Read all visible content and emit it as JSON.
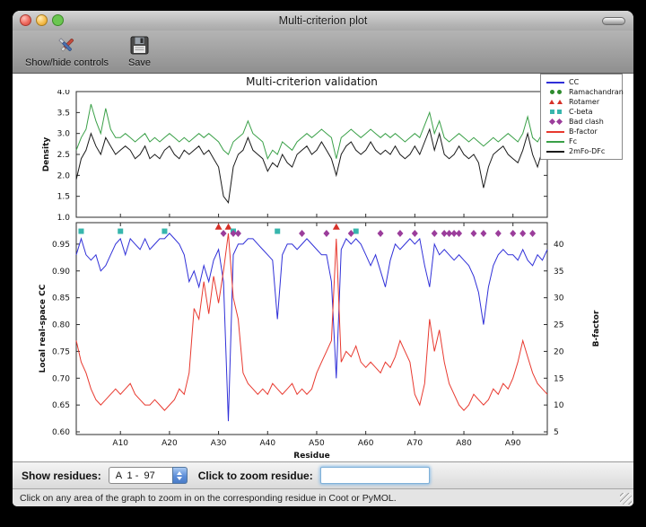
{
  "window": {
    "title": "Multi-criterion plot"
  },
  "toolbar": {
    "buttons": [
      {
        "label": "Show/hide controls",
        "icon": "tools-icon"
      },
      {
        "label": "Save",
        "icon": "save-icon"
      }
    ]
  },
  "controls": {
    "show_residues_label": "Show residues:",
    "residue_range_value": "A  1 -  97",
    "zoom_label": "Click to zoom residue:",
    "zoom_input_value": ""
  },
  "status_bar": {
    "text": "Click on any area of the graph to zoom in on the corresponding residue in Coot or PyMOL."
  },
  "legend": {
    "items": [
      {
        "label": "CC",
        "type": "line",
        "color": "#3030d8"
      },
      {
        "label": "Ramachandran",
        "type": "dot",
        "color": "#2e8b2e"
      },
      {
        "label": "Rotamer",
        "type": "triangle",
        "color": "#d63028"
      },
      {
        "label": "C-beta",
        "type": "square",
        "color": "#37b6ad"
      },
      {
        "label": "Bad clash",
        "type": "diamond",
        "color": "#9b3d9b"
      },
      {
        "label": "B-factor",
        "type": "line",
        "color": "#e8392f"
      },
      {
        "label": "Fc",
        "type": "line",
        "color": "#3aa048"
      },
      {
        "label": "2mFo-DFc",
        "type": "line",
        "color": "#1a1a1a"
      }
    ]
  },
  "chart_data": [
    {
      "type": "line",
      "title": "Multi-criterion validation",
      "ylabel": "Density",
      "ylim": [
        1.0,
        4.0
      ],
      "yticks": [
        1.0,
        1.5,
        2.0,
        2.5,
        3.0,
        3.5,
        4.0
      ],
      "x_start": 1,
      "x_end": 97,
      "series": [
        {
          "name": "Fc",
          "color": "#3aa048",
          "values": [
            2.6,
            2.9,
            3.1,
            3.7,
            3.3,
            3.0,
            3.6,
            3.1,
            2.9,
            2.9,
            3.0,
            2.9,
            2.8,
            2.9,
            3.0,
            2.8,
            2.9,
            2.8,
            2.9,
            3.0,
            2.9,
            2.8,
            2.9,
            2.8,
            2.9,
            3.0,
            2.9,
            3.0,
            2.9,
            2.8,
            2.6,
            2.5,
            2.8,
            2.9,
            3.0,
            3.3,
            3.0,
            2.9,
            2.8,
            2.4,
            2.6,
            2.5,
            2.8,
            2.7,
            2.6,
            2.8,
            2.9,
            3.0,
            2.9,
            3.0,
            3.1,
            3.0,
            2.9,
            2.4,
            2.9,
            3.0,
            3.1,
            3.0,
            2.9,
            3.0,
            3.1,
            3.0,
            2.9,
            3.0,
            2.9,
            3.0,
            2.9,
            2.8,
            2.9,
            3.0,
            2.9,
            3.2,
            3.5,
            3.0,
            3.3,
            2.9,
            2.8,
            2.9,
            3.0,
            2.9,
            2.8,
            2.9,
            2.8,
            2.7,
            2.8,
            2.9,
            2.8,
            2.9,
            3.0,
            2.9,
            2.8,
            3.0,
            3.4,
            2.9,
            2.8,
            3.0,
            3.3
          ]
        },
        {
          "name": "2mFo-DFc",
          "color": "#1a1a1a",
          "values": [
            1.9,
            2.4,
            2.6,
            3.0,
            2.7,
            2.5,
            2.9,
            2.7,
            2.5,
            2.6,
            2.7,
            2.6,
            2.4,
            2.5,
            2.7,
            2.4,
            2.5,
            2.4,
            2.6,
            2.7,
            2.5,
            2.4,
            2.6,
            2.5,
            2.6,
            2.7,
            2.5,
            2.6,
            2.4,
            2.2,
            1.5,
            1.35,
            2.2,
            2.5,
            2.6,
            2.9,
            2.6,
            2.5,
            2.4,
            2.1,
            2.3,
            2.2,
            2.5,
            2.3,
            2.2,
            2.5,
            2.6,
            2.7,
            2.5,
            2.6,
            2.8,
            2.6,
            2.4,
            2.0,
            2.5,
            2.7,
            2.8,
            2.6,
            2.5,
            2.6,
            2.8,
            2.6,
            2.5,
            2.6,
            2.5,
            2.7,
            2.5,
            2.4,
            2.5,
            2.7,
            2.5,
            2.8,
            3.1,
            2.6,
            3.0,
            2.5,
            2.4,
            2.5,
            2.7,
            2.5,
            2.4,
            2.5,
            2.3,
            1.7,
            2.2,
            2.5,
            2.6,
            2.7,
            2.5,
            2.4,
            2.3,
            2.6,
            3.0,
            2.5,
            2.2,
            2.6,
            3.1
          ]
        }
      ]
    },
    {
      "type": "line",
      "xlabel": "Residue",
      "ylabel_left": "Local real-space CC",
      "ylabel_right": "B-factor",
      "ylim_left": [
        0.595,
        0.99
      ],
      "ylim_right": [
        4.5,
        44
      ],
      "yticks_left": [
        0.6,
        0.65,
        0.7,
        0.75,
        0.8,
        0.85,
        0.9,
        0.95
      ],
      "yticks_right": [
        5,
        10,
        15,
        20,
        25,
        30,
        35,
        40
      ],
      "xticks": [
        {
          "value": 10,
          "label": "A10"
        },
        {
          "value": 20,
          "label": "A20"
        },
        {
          "value": 30,
          "label": "A30"
        },
        {
          "value": 40,
          "label": "A40"
        },
        {
          "value": 50,
          "label": "A50"
        },
        {
          "value": 60,
          "label": "A60"
        },
        {
          "value": 70,
          "label": "A70"
        },
        {
          "value": 80,
          "label": "A80"
        },
        {
          "value": 90,
          "label": "A90"
        }
      ],
      "x_start": 1,
      "x_end": 97,
      "series": [
        {
          "name": "CC",
          "axis": "left",
          "color": "#3030d8",
          "values": [
            0.93,
            0.96,
            0.93,
            0.92,
            0.93,
            0.9,
            0.91,
            0.93,
            0.95,
            0.96,
            0.93,
            0.96,
            0.95,
            0.94,
            0.96,
            0.94,
            0.95,
            0.96,
            0.96,
            0.97,
            0.96,
            0.95,
            0.93,
            0.88,
            0.9,
            0.87,
            0.91,
            0.88,
            0.92,
            0.94,
            0.88,
            0.62,
            0.93,
            0.95,
            0.95,
            0.96,
            0.96,
            0.95,
            0.94,
            0.93,
            0.92,
            0.81,
            0.93,
            0.95,
            0.95,
            0.94,
            0.95,
            0.96,
            0.95,
            0.94,
            0.93,
            0.93,
            0.88,
            0.7,
            0.94,
            0.96,
            0.95,
            0.96,
            0.95,
            0.93,
            0.91,
            0.93,
            0.9,
            0.87,
            0.92,
            0.95,
            0.94,
            0.95,
            0.96,
            0.95,
            0.96,
            0.91,
            0.87,
            0.95,
            0.93,
            0.94,
            0.93,
            0.92,
            0.93,
            0.92,
            0.91,
            0.89,
            0.86,
            0.8,
            0.87,
            0.91,
            0.93,
            0.94,
            0.93,
            0.93,
            0.92,
            0.94,
            0.92,
            0.91,
            0.93,
            0.92,
            0.94
          ]
        },
        {
          "name": "B-factor",
          "axis": "right",
          "color": "#e8392f",
          "values": [
            22,
            18,
            16,
            13,
            11,
            10,
            11,
            12,
            13,
            12,
            13,
            14,
            12,
            11,
            10,
            10,
            11,
            10,
            9,
            10,
            11,
            13,
            12,
            16,
            28,
            26,
            33,
            27,
            34,
            29,
            35,
            42,
            30,
            26,
            16,
            14,
            13,
            12,
            13,
            12,
            14,
            13,
            12,
            13,
            14,
            12,
            13,
            12,
            13,
            16,
            18,
            20,
            22,
            41,
            18,
            20,
            19,
            21,
            18,
            17,
            18,
            17,
            16,
            18,
            17,
            19,
            22,
            20,
            18,
            12,
            10,
            14,
            26,
            20,
            24,
            18,
            14,
            12,
            10,
            9,
            10,
            12,
            11,
            10,
            11,
            13,
            12,
            14,
            13,
            15,
            18,
            22,
            19,
            16,
            14,
            13,
            12
          ]
        }
      ],
      "markers": [
        {
          "name": "Rotamer",
          "shape": "triangle",
          "color": "#d63028",
          "y": 0.982,
          "residues": [
            30,
            32,
            54
          ]
        },
        {
          "name": "C-beta",
          "shape": "square",
          "color": "#37b6ad",
          "y": 0.974,
          "residues": [
            2,
            10,
            19,
            33,
            42,
            58
          ]
        },
        {
          "name": "Bad clash",
          "shape": "diamond",
          "color": "#9b3d9b",
          "y": 0.97,
          "residues": [
            31,
            33,
            34,
            47,
            52,
            57,
            63,
            67,
            70,
            74,
            76,
            77,
            78,
            79,
            82,
            84,
            87,
            90,
            92,
            94
          ]
        }
      ]
    }
  ]
}
